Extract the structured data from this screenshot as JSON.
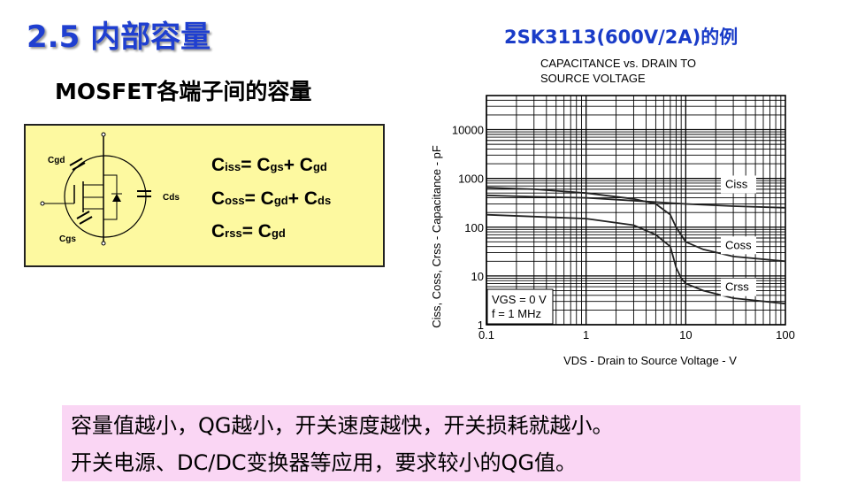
{
  "title": "2.5 内部容量",
  "subtitle": "2SK3113(600V/2A)的例",
  "heading": "MOSFET各端子间的容量",
  "circuit": {
    "cgd": "Cgd",
    "cgs": "Cgs",
    "cds": "Cds"
  },
  "equations": [
    {
      "lhs": "C",
      "lhs_sub": "iss",
      "rhs": "= C",
      "a_sub": "gs",
      "plus": "+ C",
      "b_sub": "gd"
    },
    {
      "lhs": "C",
      "lhs_sub": "oss",
      "rhs": "= C",
      "a_sub": "gd",
      "plus": "+ C",
      "b_sub": "ds"
    },
    {
      "lhs": "C",
      "lhs_sub": "rss",
      "rhs": "= C",
      "a_sub": "gd",
      "plus": "",
      "b_sub": ""
    }
  ],
  "note": [
    "容量值越小，QG越小，开关速度越快，开关损耗就越小。",
    "开关电源、DC/DC变换器等应用，要求较小的QG值。"
  ],
  "chart_data": {
    "type": "line",
    "title": [
      "CAPACITANCE vs. DRAIN TO",
      "SOURCE VOLTAGE"
    ],
    "xlabel": "VDS - Drain to Source Voltage - V",
    "ylabel": "Ciss, Coss, Crss - Capacitance - pF",
    "xscale": "log",
    "yscale": "log",
    "xlim": [
      0.1,
      100
    ],
    "ylim": [
      1,
      50000
    ],
    "xticks": [
      "0.1",
      "1",
      "10",
      "100"
    ],
    "yticks": [
      "1",
      "10",
      "100",
      "1000",
      "10000"
    ],
    "grid": true,
    "conditions": [
      "VGS = 0 V",
      "f = 1 MHz"
    ],
    "series": [
      {
        "name": "Ciss",
        "x": [
          0.1,
          0.3,
          1,
          3,
          10,
          30,
          100
        ],
        "y": [
          450,
          420,
          400,
          350,
          300,
          270,
          250
        ]
      },
      {
        "name": "Coss",
        "x": [
          0.1,
          0.3,
          1,
          3,
          5,
          7,
          8,
          10,
          15,
          30,
          100
        ],
        "y": [
          650,
          600,
          500,
          380,
          300,
          180,
          100,
          50,
          35,
          25,
          20
        ]
      },
      {
        "name": "Crss",
        "x": [
          0.1,
          0.3,
          1,
          3,
          5,
          7,
          8,
          9,
          10,
          15,
          30,
          100
        ],
        "y": [
          180,
          165,
          150,
          110,
          70,
          40,
          15,
          9,
          7,
          5,
          3.5,
          2.7
        ]
      }
    ]
  }
}
